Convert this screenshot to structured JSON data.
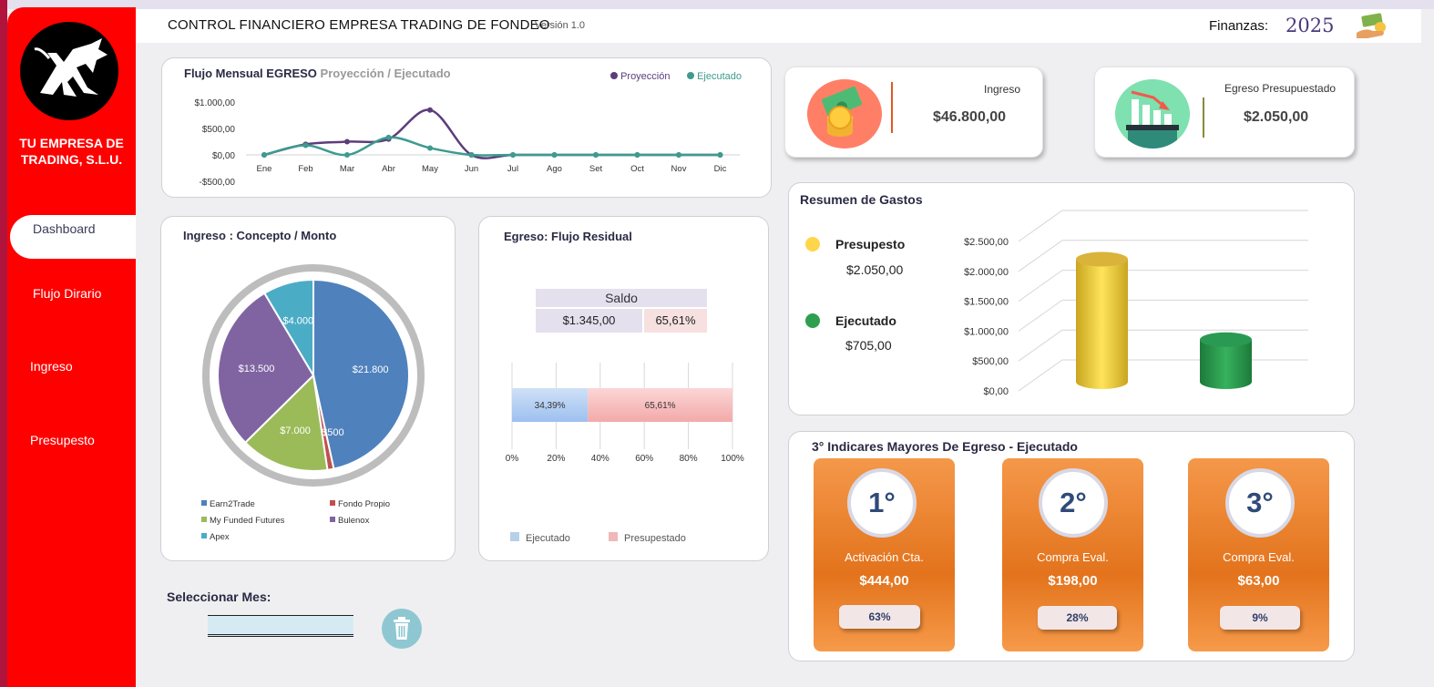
{
  "header": {
    "title": "CONTROL FINANCIERO EMPRESA TRADING DE FONDEO",
    "version": "Versión 1.0",
    "finanzas_label": "Finanzas:",
    "year": "2025"
  },
  "sidebar": {
    "company_line1": "TU EMPRESA DE",
    "company_line2": "TRADING, S.L.U.",
    "items": [
      {
        "label": "Dashboard"
      },
      {
        "label": "Flujo Dirario"
      },
      {
        "label": "Ingreso"
      },
      {
        "label": "Presupesto"
      }
    ]
  },
  "flow_chart": {
    "title": "Flujo Mensual EGRESO",
    "subtitle": "Proyección",
    "subtitle2": "/ Ejecutado",
    "legend": [
      "Proyección",
      "Ejecutado"
    ],
    "colors": {
      "proyeccion": "#5c3d7a",
      "ejecutado": "#3d9b8f"
    }
  },
  "income_kpi": {
    "label": "Ingreso",
    "value": "$46.800,00",
    "accent": "#ff7f66"
  },
  "budget_kpi": {
    "label": "Egreso Presupuestado",
    "value": "$2.050,00",
    "accent": "#7fe0b0"
  },
  "pie_card": {
    "title": "Ingreso : Concepto / Monto",
    "legend": [
      "Earn2Trade",
      "Fondo Propio",
      "My Funded Futures",
      "Bulenox",
      "Apex"
    ]
  },
  "residual_card": {
    "title": "Egreso: Flujo Residual",
    "saldo_label": "Saldo",
    "saldo_value": "$1.345,00",
    "saldo_pct": "65,61%",
    "legend": [
      "Ejecutado",
      "Presupestado"
    ]
  },
  "gastos_card": {
    "title": "Resumen de Gastos",
    "presupuesto_label": "Presupesto",
    "presupuesto_value": "$2.050,00",
    "ejecutado_label": "Ejecutado",
    "ejecutado_value": "$705,00",
    "colors": {
      "presupuesto": "#ffd54a",
      "ejecutado": "#2e9e4f"
    }
  },
  "top3_card": {
    "title": "3° Indicares Mayores De Egreso - Ejecutado",
    "items": [
      {
        "rank": "1°",
        "label": "Activación Cta.",
        "value": "$444,00",
        "pct": "63%"
      },
      {
        "rank": "2°",
        "label": "Compra Eval.",
        "value": "$198,00",
        "pct": "28%"
      },
      {
        "rank": "3°",
        "label": "Compra Eval.",
        "value": "$63,00",
        "pct": "9%"
      }
    ]
  },
  "month_select": {
    "label": "Seleccionar Mes:"
  },
  "chart_data": [
    {
      "type": "line",
      "title": "Flujo Mensual EGRESO Proyección / Ejecutado",
      "categories": [
        "Ene",
        "Feb",
        "Mar",
        "Abr",
        "May",
        "Jun",
        "Jul",
        "Ago",
        "Set",
        "Oct",
        "Nov",
        "Dic"
      ],
      "series": [
        {
          "name": "Proyección",
          "values": [
            0,
            200,
            250,
            300,
            850,
            0,
            0,
            0,
            0,
            0,
            0,
            0
          ]
        },
        {
          "name": "Ejecutado",
          "values": [
            0,
            180,
            0,
            330,
            130,
            0,
            0,
            0,
            0,
            0,
            0,
            0
          ]
        }
      ],
      "yticks": [
        "-$500,00",
        "$0,00",
        "$500,00",
        "$1.000,00"
      ],
      "ylim": [
        -500,
        1000
      ],
      "legend": "top-right"
    },
    {
      "type": "pie",
      "title": "Ingreso : Concepto / Monto",
      "labels": [
        "Earn2Trade",
        "Fondo Propio",
        "My Funded Futures",
        "Bulenox",
        "Apex"
      ],
      "values": [
        21800,
        500,
        7000,
        13500,
        4000
      ],
      "data_labels": [
        "$21.800",
        "$500",
        "$7.000",
        "$13.500",
        "$4.000"
      ],
      "colors": [
        "#4f81bd",
        "#c0504d",
        "#9bbb59",
        "#8064a2",
        "#4bacc6"
      ]
    },
    {
      "type": "bar",
      "title": "Egreso: Flujo Residual",
      "orientation": "horizontal-stacked",
      "series": [
        {
          "name": "Ejecutado",
          "values": [
            34.39
          ],
          "label": "34,39%"
        },
        {
          "name": "Presupestado",
          "values": [
            65.61
          ],
          "label": "65,61%"
        }
      ],
      "xticks": [
        "0%",
        "20%",
        "40%",
        "60%",
        "80%",
        "100%"
      ],
      "xlim": [
        0,
        100
      ]
    },
    {
      "type": "bar",
      "title": "Resumen de Gastos",
      "categories": [
        "Presupesto",
        "Ejecutado"
      ],
      "values": [
        2050,
        705
      ],
      "yticks": [
        "$0,00",
        "$500,00",
        "$1.000,00",
        "$1.500,00",
        "$2.000,00",
        "$2.500,00"
      ],
      "ylim": [
        0,
        2500
      ],
      "style": "3d-cylinder"
    }
  ]
}
